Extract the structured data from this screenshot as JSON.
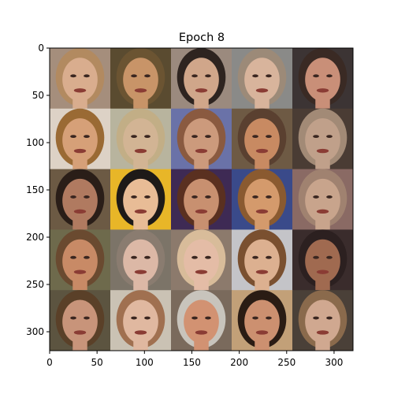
{
  "title": "Epoch 8",
  "x_ticks": [
    "0",
    "50",
    "100",
    "150",
    "200",
    "250",
    "300"
  ],
  "y_ticks": [
    "0",
    "50",
    "100",
    "150",
    "200",
    "250",
    "300"
  ],
  "grid": {
    "rows": 5,
    "cols": 5
  },
  "tiles": [
    {
      "bg": "#a58e7c",
      "skin": "#d9ad8e",
      "hair": "#b28a60"
    },
    {
      "bg": "#5a4b30",
      "skin": "#c89468",
      "hair": "#6b5432"
    },
    {
      "bg": "#9b8a7e",
      "skin": "#d0a68a",
      "hair": "#2e2420"
    },
    {
      "bg": "#8a8a88",
      "skin": "#d8b49c",
      "hair": "#9c8a78"
    },
    {
      "bg": "#3c3434",
      "skin": "#c98f78",
      "hair": "#3a2a24"
    },
    {
      "bg": "#ddd2c6",
      "skin": "#d6a078",
      "hair": "#9a6a34"
    },
    {
      "bg": "#b8b49e",
      "skin": "#d2b494",
      "hair": "#c2ae86"
    },
    {
      "bg": "#6a72a8",
      "skin": "#cc9a7c",
      "hair": "#8a5a40"
    },
    {
      "bg": "#6e5a44",
      "skin": "#c88a62",
      "hair": "#5a4030"
    },
    {
      "bg": "#4a3c34",
      "skin": "#c0a08a",
      "hair": "#a28a76"
    },
    {
      "bg": "#6c5a44",
      "skin": "#b07a60",
      "hair": "#2a1e18"
    },
    {
      "bg": "#e8b628",
      "skin": "#e8bc96",
      "hair": "#1e1a18"
    },
    {
      "bg": "#3e2a54",
      "skin": "#c89070",
      "hair": "#5a3020"
    },
    {
      "bg": "#3a4a8a",
      "skin": "#d49a6c",
      "hair": "#8a5a30"
    },
    {
      "bg": "#8a6a64",
      "skin": "#c8a48c",
      "hair": "#a08270"
    },
    {
      "bg": "#6e6a4c",
      "skin": "#c88a66",
      "hair": "#6a4a30"
    },
    {
      "bg": "#7c7468",
      "skin": "#dcb8a6",
      "hair": "#8a7c70"
    },
    {
      "bg": "#8c7a6c",
      "skin": "#e4bca6",
      "hair": "#d8bc9a"
    },
    {
      "bg": "#c4c4c8",
      "skin": "#dcb090",
      "hair": "#7a5030"
    },
    {
      "bg": "#3a2c2c",
      "skin": "#a06a50",
      "hair": "#2c2020"
    },
    {
      "bg": "#5c5440",
      "skin": "#c8947a",
      "hair": "#5a4028"
    },
    {
      "bg": "#cac2b4",
      "skin": "#e0b8a0",
      "hair": "#a07050"
    },
    {
      "bg": "#7a6a5c",
      "skin": "#d29272",
      "hair": "#c8c4bc"
    },
    {
      "bg": "#c2a078",
      "skin": "#cc9070",
      "hair": "#2a1c14"
    },
    {
      "bg": "#4a4038",
      "skin": "#d0a890",
      "hair": "#8a6a4c"
    }
  ]
}
